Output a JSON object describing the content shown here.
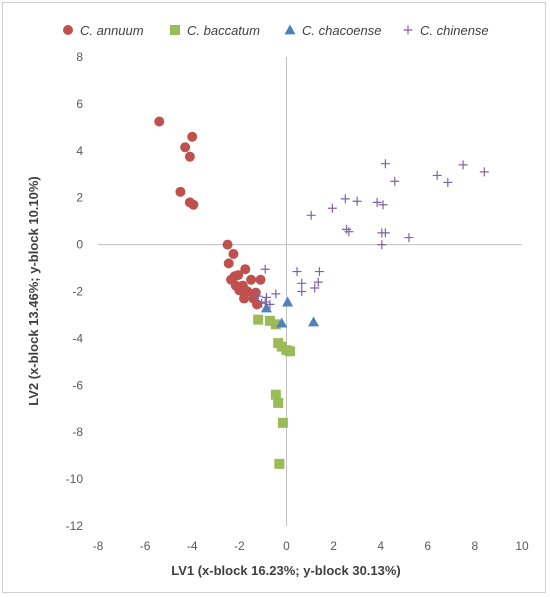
{
  "chart_data": {
    "type": "scatter",
    "title": "",
    "xlabel": "LV1 (x-block 16.23%; y-block 30.13%)",
    "ylabel": "LV2 (x-block 13.46%; y-block 10.10%)",
    "xlim": [
      -8,
      10
    ],
    "ylim": [
      -12,
      8
    ],
    "xticks": [
      -8,
      -6,
      -4,
      -2,
      0,
      2,
      4,
      6,
      8,
      10
    ],
    "yticks": [
      -12,
      -10,
      -8,
      -6,
      -4,
      -2,
      0,
      2,
      4,
      6,
      8
    ],
    "grid": false,
    "legend_position": "top",
    "series": [
      {
        "name": "C. annuum",
        "marker": "circle",
        "color": "#c0504d",
        "points": [
          [
            -5.4,
            5.25
          ],
          [
            -4.0,
            4.6
          ],
          [
            -4.3,
            4.15
          ],
          [
            -4.1,
            3.75
          ],
          [
            -4.5,
            2.25
          ],
          [
            -4.1,
            1.8
          ],
          [
            -3.95,
            1.7
          ],
          [
            -2.5,
            0.0
          ],
          [
            -2.25,
            -0.4
          ],
          [
            -2.45,
            -0.8
          ],
          [
            -1.75,
            -1.05
          ],
          [
            -2.2,
            -1.35
          ],
          [
            -2.05,
            -1.3
          ],
          [
            -1.5,
            -1.5
          ],
          [
            -1.1,
            -1.5
          ],
          [
            -2.35,
            -1.5
          ],
          [
            -2.15,
            -1.75
          ],
          [
            -1.85,
            -1.75
          ],
          [
            -2.0,
            -1.95
          ],
          [
            -1.65,
            -2.0
          ],
          [
            -1.3,
            -2.05
          ],
          [
            -1.8,
            -2.3
          ],
          [
            -1.4,
            -2.3
          ],
          [
            -1.25,
            -2.55
          ]
        ]
      },
      {
        "name": "C. baccatum",
        "marker": "square",
        "color": "#9bbb59",
        "points": [
          [
            -1.2,
            -3.2
          ],
          [
            -0.7,
            -3.25
          ],
          [
            -0.45,
            -3.4
          ],
          [
            -0.35,
            -4.2
          ],
          [
            -0.2,
            -4.35
          ],
          [
            0.0,
            -4.5
          ],
          [
            0.15,
            -4.55
          ],
          [
            -0.45,
            -6.4
          ],
          [
            -0.35,
            -6.75
          ],
          [
            -0.15,
            -7.6
          ],
          [
            -0.3,
            -9.35
          ]
        ]
      },
      {
        "name": "C. chacoense",
        "marker": "triangle",
        "color": "#4f81bd",
        "points": [
          [
            0.05,
            -2.45
          ],
          [
            -0.85,
            -2.7
          ],
          [
            -0.2,
            -3.35
          ],
          [
            1.15,
            -3.3
          ]
        ]
      },
      {
        "name": "C. chinense",
        "marker": "plus",
        "color": "#8064a2",
        "points": [
          [
            4.2,
            3.45
          ],
          [
            7.5,
            3.4
          ],
          [
            8.4,
            3.1
          ],
          [
            6.4,
            2.95
          ],
          [
            6.85,
            2.65
          ],
          [
            4.6,
            2.7
          ],
          [
            2.5,
            1.95
          ],
          [
            3.0,
            1.85
          ],
          [
            3.85,
            1.8
          ],
          [
            4.1,
            1.7
          ],
          [
            1.95,
            1.55
          ],
          [
            1.05,
            1.25
          ],
          [
            2.55,
            0.65
          ],
          [
            2.65,
            0.55
          ],
          [
            4.05,
            0.5
          ],
          [
            4.2,
            0.5
          ],
          [
            5.2,
            0.3
          ],
          [
            4.05,
            0.0
          ],
          [
            -0.9,
            -1.05
          ],
          [
            0.45,
            -1.15
          ],
          [
            1.4,
            -1.15
          ],
          [
            0.65,
            -1.65
          ],
          [
            1.35,
            -1.6
          ],
          [
            1.2,
            -1.85
          ],
          [
            0.65,
            -2.0
          ],
          [
            -0.45,
            -2.1
          ],
          [
            -1.2,
            -2.2
          ],
          [
            -0.85,
            -2.25
          ],
          [
            -0.9,
            -2.45
          ],
          [
            -1.05,
            -2.5
          ],
          [
            -0.7,
            -2.55
          ]
        ]
      }
    ]
  }
}
